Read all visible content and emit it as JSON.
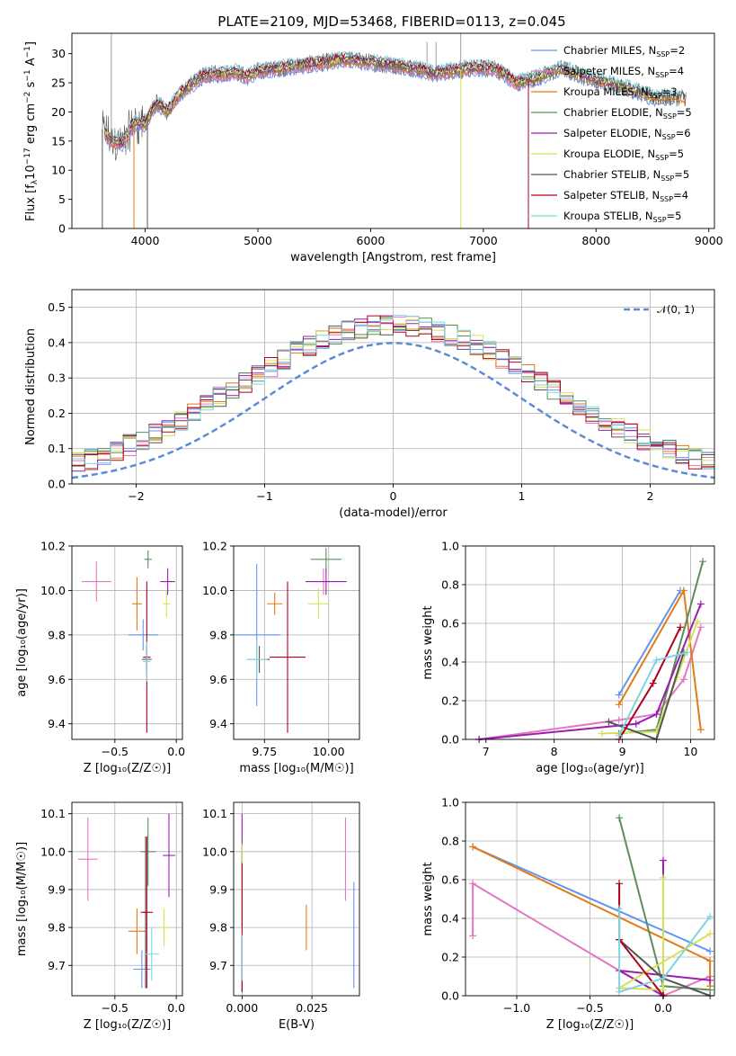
{
  "figure": {
    "title": "PLATE=2109, MJD=53468, FIBERID=0113, z=0.045"
  },
  "series_styles": [
    {
      "name": "Chabrier MILES",
      "nssp": "2",
      "color": "#6495ed"
    },
    {
      "name": "Salpeter MILES",
      "nssp": "4",
      "color": "#e377c2"
    },
    {
      "name": "Kroupa MILES",
      "nssp": "3",
      "color": "#e07b18"
    },
    {
      "name": "Chabrier ELODIE",
      "nssp": "5",
      "color": "#5a8f5a"
    },
    {
      "name": "Salpeter ELODIE",
      "nssp": "6",
      "color": "#9b1fae"
    },
    {
      "name": "Kroupa ELODIE",
      "nssp": "5",
      "color": "#d4e157"
    },
    {
      "name": "Chabrier STELIB",
      "nssp": "5",
      "color": "#555555"
    },
    {
      "name": "Salpeter STELIB",
      "nssp": "4",
      "color": "#b0001e"
    },
    {
      "name": "Kroupa STELIB",
      "nssp": "5",
      "color": "#7fd4e0"
    }
  ],
  "chart_data": [
    {
      "id": "spectrum",
      "type": "line",
      "xlabel": "wavelength [Angstrom, rest frame]",
      "ylabel_parts": [
        "Flux [f",
        "λ",
        "10",
        "−17",
        " erg cm",
        "−2",
        " s",
        "−1",
        " A",
        "−1",
        "]"
      ],
      "xlim": [
        3350,
        9050
      ],
      "ylim": [
        0,
        33.5
      ],
      "xticks": [
        4000,
        5000,
        6000,
        7000,
        8000,
        9000
      ],
      "yticks": [
        0,
        5,
        10,
        15,
        20,
        25,
        30
      ],
      "grid": false,
      "legend": "upper-right",
      "continuum": {
        "x": [
          3620,
          3700,
          3800,
          3900,
          4000,
          4100,
          4200,
          4300,
          4400,
          4500,
          4600,
          4700,
          4800,
          4900,
          5000,
          5200,
          5400,
          5600,
          5800,
          6000,
          6200,
          6400,
          6560,
          6700,
          6900,
          7100,
          7300,
          7500,
          7700,
          7900,
          8100,
          8300,
          8500,
          8700,
          8800
        ],
        "y": [
          17,
          15,
          14.5,
          18,
          18,
          21.5,
          20,
          23,
          24.5,
          26,
          26.5,
          26.5,
          27,
          26,
          27,
          27.5,
          28,
          28.5,
          29,
          28.5,
          28,
          27.5,
          26.5,
          27,
          27.5,
          27.5,
          25,
          26,
          27.5,
          26,
          25,
          24,
          22.5,
          22.5,
          22.5
        ]
      },
      "end_wavelengths": [
        8700,
        7400,
        8800,
        8250,
        8200,
        8250,
        8800,
        7400,
        8750
      ],
      "dropouts": [
        {
          "x": 3620,
          "series": 6
        },
        {
          "x": 3900,
          "series": 2
        },
        {
          "x": 4020,
          "series": 6
        },
        {
          "x": 6800,
          "series": 5
        },
        {
          "x": 7400,
          "series": 7
        }
      ],
      "spikes": [
        {
          "x": 3700,
          "top": 33.5
        },
        {
          "x": 6500,
          "top": 32
        },
        {
          "x": 6580,
          "top": 32
        },
        {
          "x": 6800,
          "top": 33.5
        }
      ]
    },
    {
      "id": "residuals",
      "type": "histogram",
      "xlabel": "(data-model)/error",
      "ylabel": "Normed distribution",
      "xlim": [
        -2.5,
        2.5
      ],
      "ylim": [
        0,
        0.55
      ],
      "xticks": [
        -2,
        -1,
        0,
        1,
        2
      ],
      "yticks": [
        0.0,
        0.1,
        0.2,
        0.3,
        0.4,
        0.5
      ],
      "grid": true,
      "legend": "upper-right",
      "gaussian_label": "𝒩(0, 1)",
      "bin_width": 0.1
    },
    {
      "id": "age_vs_Z",
      "type": "errorbar",
      "xlabel": "Z [log₁₀(Z/Z☉)]",
      "ylabel": "age  [log₁₀(age/yr)]",
      "xlim": [
        -0.85,
        0.05
      ],
      "ylim": [
        9.33,
        10.2
      ],
      "xticks": [
        -0.5,
        0.0
      ],
      "yticks": [
        9.4,
        9.6,
        9.8,
        10.0,
        10.2
      ],
      "grid": true,
      "points": [
        {
          "series": 0,
          "x": -0.27,
          "y": 9.8,
          "ex": 0.12,
          "ey": 0.07
        },
        {
          "series": 1,
          "x": -0.65,
          "y": 10.04,
          "ex": 0.12,
          "ey": 0.09
        },
        {
          "series": 2,
          "x": -0.32,
          "y": 9.94,
          "ex": 0.04,
          "ey": 0.12
        },
        {
          "series": 3,
          "x": -0.23,
          "y": 10.14,
          "ex": 0.03,
          "ey": 0.04
        },
        {
          "series": 4,
          "x": -0.07,
          "y": 10.04,
          "ex": 0.06,
          "ey": 0.06
        },
        {
          "series": 5,
          "x": -0.08,
          "y": 9.94,
          "ex": 0.03,
          "ey": 0.06
        },
        {
          "series": 6,
          "x": -0.24,
          "y": 9.69,
          "ex": 0.04,
          "ey": 0.06
        },
        {
          "series": 7,
          "x": -0.24,
          "y": 9.7,
          "ex": 0.03,
          "ey": 0.34
        },
        {
          "series": 8,
          "x": -0.24,
          "y": 9.68,
          "ex": 0.03,
          "ey": 0.09
        }
      ]
    },
    {
      "id": "age_vs_mass",
      "type": "errorbar",
      "xlabel": "mass [log₁₀(M/M☉)]",
      "xlim": [
        9.63,
        10.12
      ],
      "ylim": [
        9.33,
        10.2
      ],
      "xticks": [
        9.75,
        10.0
      ],
      "yticks": [
        9.4,
        9.6,
        9.8,
        10.0,
        10.2
      ],
      "grid": true,
      "points": [
        {
          "series": 0,
          "x": 9.72,
          "y": 9.8,
          "ex": 0.09,
          "ey": 0.32
        },
        {
          "series": 1,
          "x": 9.98,
          "y": 10.04,
          "ex": 0.04,
          "ey": 0.06
        },
        {
          "series": 2,
          "x": 9.79,
          "y": 9.94,
          "ex": 0.03,
          "ey": 0.05
        },
        {
          "series": 3,
          "x": 9.99,
          "y": 10.14,
          "ex": 0.06,
          "ey": 0.05
        },
        {
          "series": 4,
          "x": 9.99,
          "y": 10.04,
          "ex": 0.08,
          "ey": 0.06
        },
        {
          "series": 5,
          "x": 9.96,
          "y": 9.94,
          "ex": 0.04,
          "ey": 0.07
        },
        {
          "series": 6,
          "x": 9.73,
          "y": 9.69,
          "ex": 0.04,
          "ey": 0.06
        },
        {
          "series": 7,
          "x": 9.84,
          "y": 9.7,
          "ex": 0.07,
          "ey": 0.34
        },
        {
          "series": 8,
          "x": 9.72,
          "y": 9.69,
          "ex": 0.04,
          "ey": 0.09
        }
      ]
    },
    {
      "id": "weight_vs_age",
      "type": "line",
      "xlabel": "age  [log₁₀(age/yr)]",
      "ylabel": "mass weight",
      "xlim": [
        6.7,
        10.35
      ],
      "ylim": [
        0,
        1
      ],
      "xticks": [
        7,
        8,
        9,
        10
      ],
      "yticks": [
        0.0,
        0.2,
        0.4,
        0.6,
        0.8,
        1.0
      ],
      "grid": true,
      "series": [
        {
          "series": 0,
          "x": [
            8.95,
            9.85
          ],
          "y": [
            0.23,
            0.77
          ]
        },
        {
          "series": 1,
          "x": [
            6.9,
            8.95,
            9.5,
            9.9,
            10.15
          ],
          "y": [
            0.0,
            0.1,
            0.13,
            0.31,
            0.58
          ]
        },
        {
          "series": 2,
          "x": [
            8.95,
            9.9,
            10.15
          ],
          "y": [
            0.18,
            0.77,
            0.05
          ]
        },
        {
          "series": 3,
          "x": [
            8.95,
            9.5,
            10.18
          ],
          "y": [
            0.03,
            0.05,
            0.92
          ]
        },
        {
          "series": 4,
          "x": [
            6.9,
            9.2,
            9.5,
            10.15
          ],
          "y": [
            0.0,
            0.08,
            0.13,
            0.7
          ]
        },
        {
          "series": 5,
          "x": [
            8.7,
            9.5,
            9.8,
            10.1
          ],
          "y": [
            0.03,
            0.04,
            0.32,
            0.61
          ]
        },
        {
          "series": 6,
          "x": [
            8.8,
            9.5,
            9.9
          ],
          "y": [
            0.09,
            0.0,
            0.45
          ]
        },
        {
          "series": 7,
          "x": [
            8.95,
            9.45,
            9.85
          ],
          "y": [
            0.0,
            0.29,
            0.58
          ]
        },
        {
          "series": 8,
          "x": [
            8.95,
            9.5,
            9.95
          ],
          "y": [
            0.02,
            0.41,
            0.45
          ]
        }
      ]
    },
    {
      "id": "mass_vs_Z",
      "type": "errorbar",
      "xlabel": "Z [log₁₀(Z/Z☉)]",
      "ylabel": "mass [log₁₀(M/M☉)]",
      "xlim": [
        -0.85,
        0.05
      ],
      "ylim": [
        9.62,
        10.13
      ],
      "xticks": [
        -0.5,
        0.0
      ],
      "yticks": [
        9.7,
        9.8,
        9.9,
        10.0,
        10.1
      ],
      "grid": true,
      "points": [
        {
          "series": 0,
          "x": -0.28,
          "y": 9.69,
          "ex": 0.07,
          "ey": 0.05
        },
        {
          "series": 1,
          "x": -0.72,
          "y": 9.98,
          "ex": 0.08,
          "ey": 0.11
        },
        {
          "series": 2,
          "x": -0.32,
          "y": 9.79,
          "ex": 0.07,
          "ey": 0.06
        },
        {
          "series": 3,
          "x": -0.23,
          "y": 10.0,
          "ex": 0.06,
          "ey": 0.09
        },
        {
          "series": 4,
          "x": -0.06,
          "y": 9.99,
          "ex": 0.05,
          "ey": 0.11
        },
        {
          "series": 5,
          "x": -0.1,
          "y": 9.8,
          "ex": 0.05,
          "ey": 0.05
        },
        {
          "series": 6,
          "x": -0.25,
          "y": 9.84,
          "ex": 0.02,
          "ey": 0.2
        },
        {
          "series": 7,
          "x": -0.24,
          "y": 9.84,
          "ex": 0.05,
          "ey": 0.2
        },
        {
          "series": 8,
          "x": -0.2,
          "y": 9.73,
          "ex": 0.06,
          "ey": 0.07
        }
      ]
    },
    {
      "id": "mass_vs_EBV",
      "type": "errorbar",
      "xlabel": "E(B-V)",
      "xlim": [
        -0.003,
        0.042
      ],
      "ylim": [
        9.62,
        10.13
      ],
      "xticks": [
        0.0,
        0.025
      ],
      "yticks": [
        9.7,
        9.8,
        9.9,
        10.0,
        10.1
      ],
      "grid": true,
      "points": [
        {
          "series": 0,
          "x": 0.04,
          "y": 9.78,
          "ey": 0.14
        },
        {
          "series": 1,
          "x": 0.037,
          "y": 9.98,
          "ey": 0.11
        },
        {
          "series": 2,
          "x": 0.023,
          "y": 9.8,
          "ey": 0.06
        },
        {
          "series": 3,
          "x": 0.0,
          "y": 9.9,
          "ey": 0.1
        },
        {
          "series": 4,
          "x": 0.0,
          "y": 10.02,
          "ey": 0.08
        },
        {
          "series": 5,
          "x": 0.0,
          "y": 9.94,
          "ey": 0.08
        },
        {
          "series": 6,
          "x": 0.0,
          "y": 9.7,
          "ey": 0.07
        },
        {
          "series": 7,
          "x": 0.0,
          "y": 9.8,
          "ey": 0.17
        },
        {
          "series": 8,
          "x": 0.0,
          "y": 9.72,
          "ey": 0.06
        }
      ]
    },
    {
      "id": "weight_vs_Z",
      "type": "line",
      "xlabel": "Z [log₁₀(Z/Z☉)]",
      "ylabel": "mass weight",
      "xlim": [
        -1.35,
        0.35
      ],
      "ylim": [
        0,
        1
      ],
      "xticks": [
        -1.0,
        -0.5,
        0.0
      ],
      "yticks": [
        0.0,
        0.2,
        0.4,
        0.6,
        0.8,
        1.0
      ],
      "grid": true,
      "series": [
        {
          "series": 0,
          "x": [
            -1.3,
            0.32
          ],
          "y": [
            0.77,
            0.23
          ]
        },
        {
          "series": 1,
          "x": [
            -1.3,
            -1.3,
            -0.3,
            0.0,
            0.32
          ],
          "y": [
            0.31,
            0.58,
            0.13,
            0.0,
            0.1
          ]
        },
        {
          "series": 2,
          "x": [
            -1.3,
            0.32,
            0.32
          ],
          "y": [
            0.77,
            0.18,
            0.05
          ]
        },
        {
          "series": 3,
          "x": [
            -0.3,
            0.0,
            0.32
          ],
          "y": [
            0.92,
            0.05,
            0.03
          ]
        },
        {
          "series": 4,
          "x": [
            0.0,
            0.0,
            -0.3,
            0.32
          ],
          "y": [
            0.7,
            0.0,
            0.13,
            0.08
          ]
        },
        {
          "series": 5,
          "x": [
            0.0,
            0.0,
            -0.3,
            0.32
          ],
          "y": [
            0.61,
            0.03,
            0.04,
            0.32
          ]
        },
        {
          "series": 6,
          "x": [
            -0.3,
            0.0,
            0.32
          ],
          "y": [
            0.29,
            0.09,
            0.0
          ]
        },
        {
          "series": 7,
          "x": [
            -0.3,
            -0.3,
            0.0
          ],
          "y": [
            0.58,
            0.29,
            0.0
          ]
        },
        {
          "series": 8,
          "x": [
            -0.3,
            -0.3,
            0.0,
            0.32
          ],
          "y": [
            0.45,
            0.02,
            0.09,
            0.41
          ]
        }
      ]
    }
  ]
}
